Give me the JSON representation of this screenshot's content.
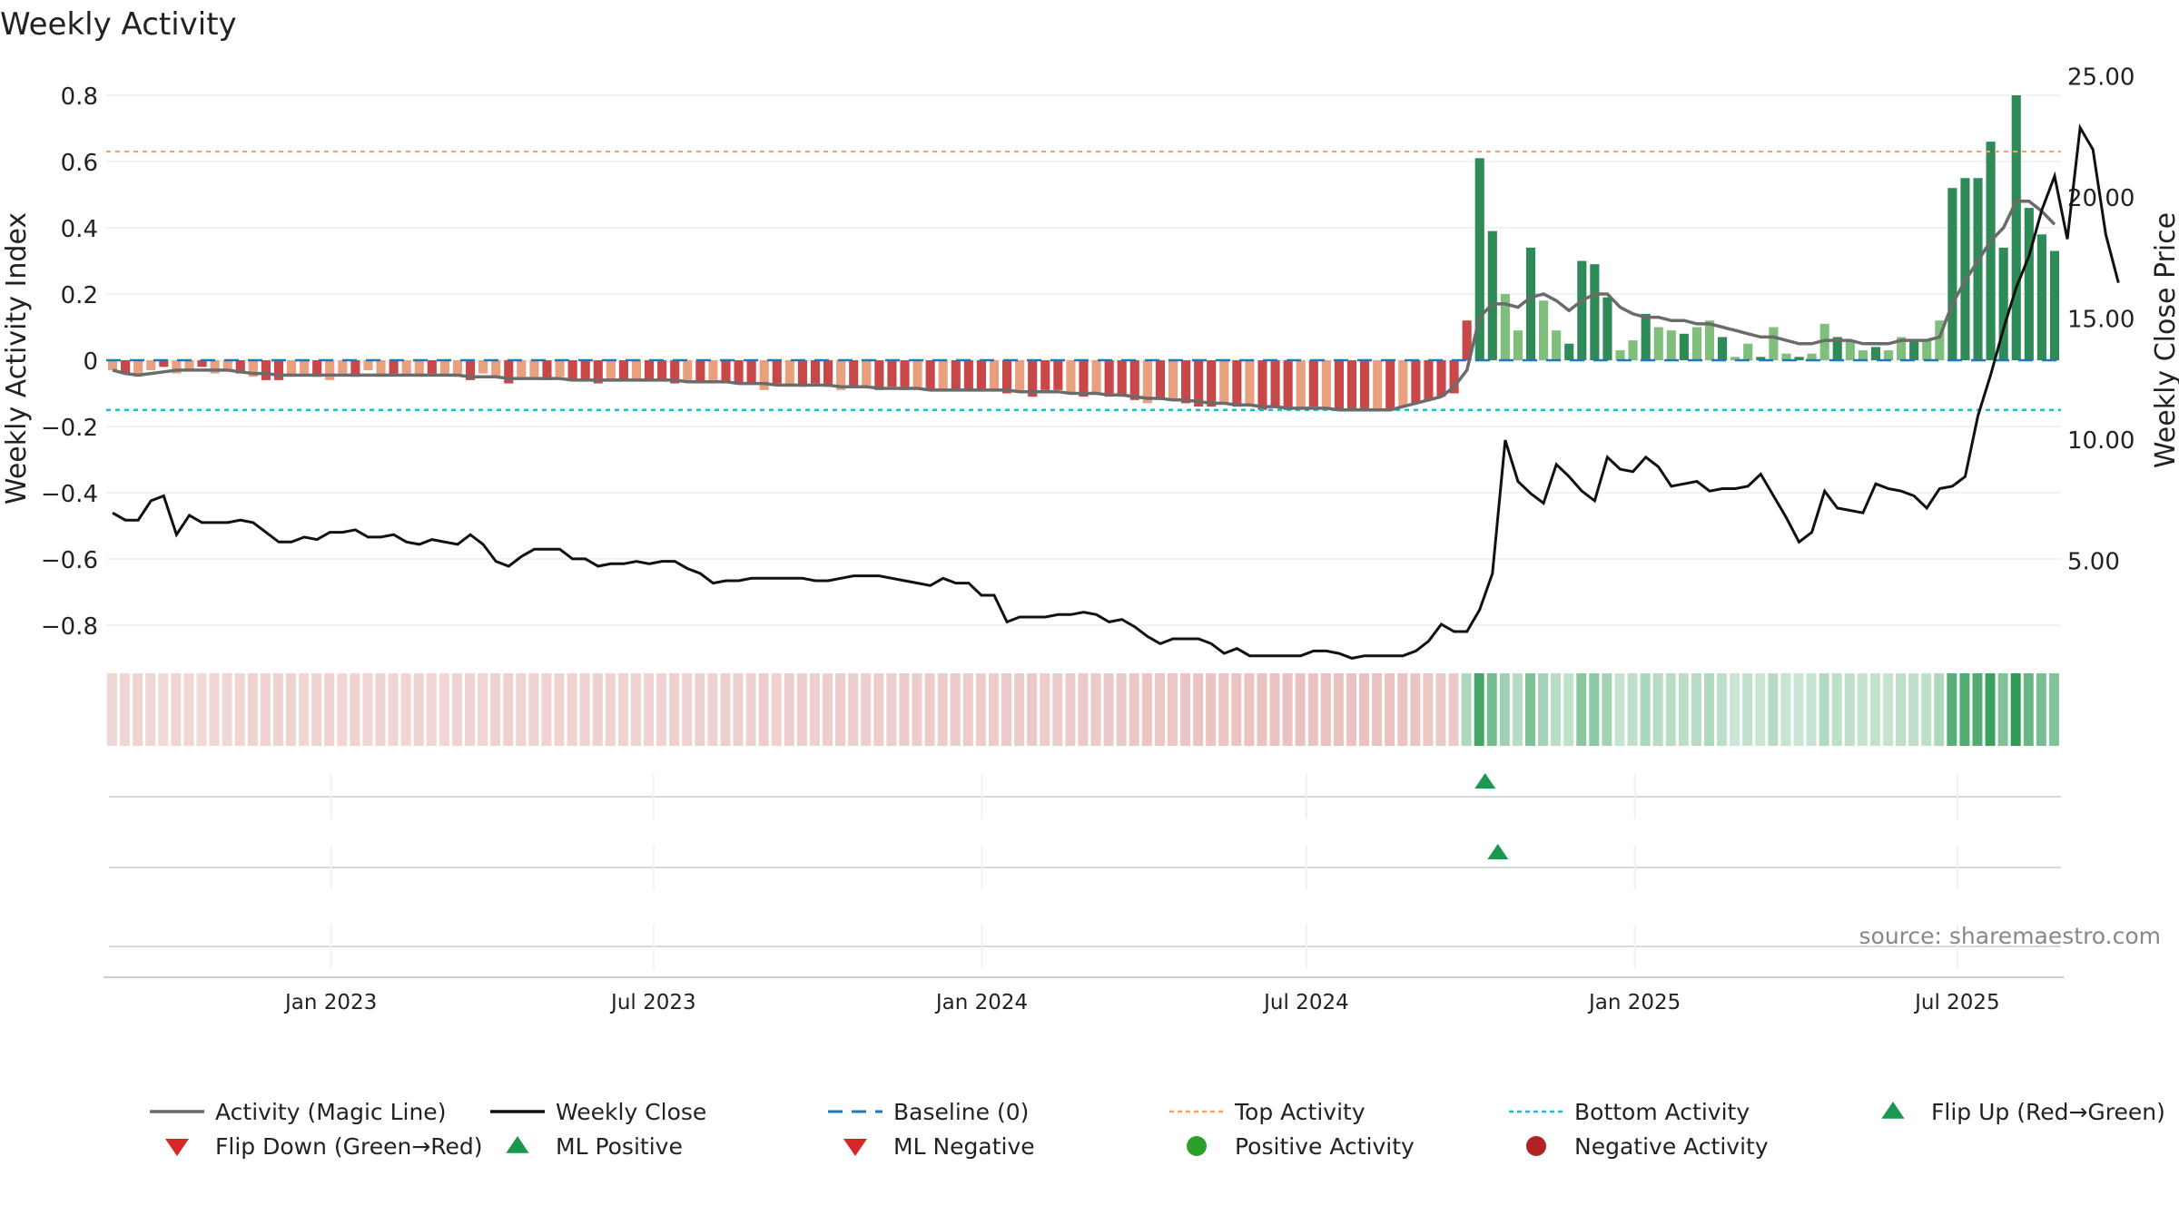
{
  "chart_data": {
    "type": "bar",
    "title": "Weekly Activity",
    "ylabel": "Weekly Activity Index",
    "y2label": "Weekly Close Price",
    "ylim": [
      -0.86,
      0.83
    ],
    "y2lim": [
      2.2,
      25.6
    ],
    "yticks": [
      "0.8",
      "0.6",
      "0.4",
      "0.2",
      "0",
      "−0.2",
      "−0.4",
      "−0.6",
      "−0.8"
    ],
    "y2ticks": [
      "25.00",
      "20.00",
      "15.00",
      "10.00",
      "5.00"
    ],
    "xticks": [
      "Jan 2023",
      "Jul 2023",
      "Jan 2024",
      "Jul 2024",
      "Jan 2025",
      "Jul 2025"
    ],
    "top_activity": 0.63,
    "bottom_activity": -0.15,
    "baseline": 0,
    "grid": true,
    "legend_position": "bottom",
    "source": "source: sharemaestro.com",
    "colors": {
      "neg_dark": "#c8484a",
      "neg_light": "#e8a07e",
      "pos_dark": "#2e8b57",
      "pos_light": "#7fbf7b",
      "magic": "#6b6b6b",
      "close": "#111111",
      "baseline": "#1f77b4",
      "top": "#f4a261",
      "bottom": "#17becf",
      "flip_up": "#1a9850",
      "flip_down": "#d62728",
      "pos_dot": "#2ca02c",
      "neg_dot": "#b22222"
    },
    "series": [
      {
        "name": "Activity",
        "values": [
          -0.03,
          -0.04,
          -0.05,
          -0.03,
          -0.02,
          -0.04,
          -0.03,
          -0.02,
          -0.04,
          -0.03,
          -0.04,
          -0.05,
          -0.06,
          -0.06,
          -0.05,
          -0.04,
          -0.05,
          -0.06,
          -0.04,
          -0.05,
          -0.03,
          -0.05,
          -0.04,
          -0.04,
          -0.05,
          -0.04,
          -0.04,
          -0.05,
          -0.06,
          -0.04,
          -0.05,
          -0.07,
          -0.05,
          -0.05,
          -0.06,
          -0.05,
          -0.06,
          -0.06,
          -0.07,
          -0.06,
          -0.06,
          -0.06,
          -0.06,
          -0.06,
          -0.07,
          -0.06,
          -0.07,
          -0.06,
          -0.07,
          -0.07,
          -0.07,
          -0.09,
          -0.07,
          -0.08,
          -0.08,
          -0.07,
          -0.08,
          -0.09,
          -0.08,
          -0.08,
          -0.09,
          -0.08,
          -0.09,
          -0.09,
          -0.09,
          -0.09,
          -0.09,
          -0.09,
          -0.09,
          -0.09,
          -0.1,
          -0.09,
          -0.11,
          -0.09,
          -0.09,
          -0.1,
          -0.11,
          -0.1,
          -0.11,
          -0.11,
          -0.12,
          -0.13,
          -0.12,
          -0.12,
          -0.13,
          -0.14,
          -0.14,
          -0.13,
          -0.14,
          -0.14,
          -0.15,
          -0.14,
          -0.15,
          -0.15,
          -0.14,
          -0.15,
          -0.15,
          -0.15,
          -0.15,
          -0.15,
          -0.15,
          -0.14,
          -0.13,
          -0.12,
          -0.11,
          -0.1,
          0.12,
          0.61,
          0.39,
          0.2,
          0.09,
          0.34,
          0.18,
          0.09,
          0.05,
          0.3,
          0.29,
          0.19,
          0.03,
          0.06,
          0.14,
          0.1,
          0.09,
          0.08,
          0.1,
          0.12,
          0.07,
          0.01,
          0.05,
          0.01,
          0.1,
          0.02,
          0.01,
          0.02,
          0.11,
          0.07,
          0.06,
          0.03,
          0.04,
          0.03,
          0.07,
          0.06,
          0.06,
          0.12,
          0.52,
          0.55,
          0.55,
          0.66,
          0.34,
          0.8,
          0.46,
          0.38,
          0.33
        ]
      },
      {
        "name": "Activity (Magic Line)",
        "values": [
          -0.03,
          -0.04,
          -0.045,
          -0.04,
          -0.035,
          -0.03,
          -0.03,
          -0.03,
          -0.03,
          -0.03,
          -0.035,
          -0.04,
          -0.04,
          -0.045,
          -0.045,
          -0.045,
          -0.045,
          -0.045,
          -0.045,
          -0.045,
          -0.045,
          -0.045,
          -0.045,
          -0.045,
          -0.045,
          -0.045,
          -0.045,
          -0.045,
          -0.05,
          -0.05,
          -0.05,
          -0.055,
          -0.055,
          -0.055,
          -0.055,
          -0.055,
          -0.06,
          -0.06,
          -0.06,
          -0.06,
          -0.06,
          -0.06,
          -0.06,
          -0.06,
          -0.06,
          -0.065,
          -0.065,
          -0.065,
          -0.065,
          -0.07,
          -0.07,
          -0.07,
          -0.075,
          -0.075,
          -0.075,
          -0.075,
          -0.075,
          -0.08,
          -0.08,
          -0.08,
          -0.085,
          -0.085,
          -0.085,
          -0.085,
          -0.09,
          -0.09,
          -0.09,
          -0.09,
          -0.09,
          -0.09,
          -0.09,
          -0.095,
          -0.095,
          -0.095,
          -0.095,
          -0.1,
          -0.1,
          -0.1,
          -0.105,
          -0.105,
          -0.11,
          -0.115,
          -0.115,
          -0.12,
          -0.12,
          -0.125,
          -0.13,
          -0.13,
          -0.135,
          -0.135,
          -0.14,
          -0.14,
          -0.145,
          -0.145,
          -0.145,
          -0.145,
          -0.15,
          -0.15,
          -0.15,
          -0.15,
          -0.15,
          -0.14,
          -0.13,
          -0.12,
          -0.11,
          -0.08,
          -0.03,
          0.13,
          0.17,
          0.17,
          0.16,
          0.19,
          0.2,
          0.18,
          0.15,
          0.18,
          0.2,
          0.2,
          0.16,
          0.14,
          0.13,
          0.13,
          0.12,
          0.12,
          0.11,
          0.11,
          0.1,
          0.09,
          0.08,
          0.07,
          0.07,
          0.06,
          0.05,
          0.05,
          0.06,
          0.06,
          0.06,
          0.05,
          0.05,
          0.05,
          0.06,
          0.06,
          0.06,
          0.07,
          0.17,
          0.24,
          0.3,
          0.36,
          0.4,
          0.48,
          0.48,
          0.45,
          0.41
        ]
      },
      {
        "name": "Weekly Close",
        "values": [
          7.0,
          6.7,
          6.7,
          7.5,
          7.7,
          6.1,
          6.9,
          6.6,
          6.6,
          6.6,
          6.7,
          6.6,
          6.2,
          5.8,
          5.8,
          6.0,
          5.9,
          6.2,
          6.2,
          6.3,
          6.0,
          6.0,
          6.1,
          5.8,
          5.7,
          5.9,
          5.8,
          5.7,
          6.1,
          5.7,
          5.0,
          4.8,
          5.2,
          5.5,
          5.5,
          5.5,
          5.1,
          5.1,
          4.8,
          4.9,
          4.9,
          5.0,
          4.9,
          5.0,
          5.0,
          4.7,
          4.5,
          4.1,
          4.2,
          4.2,
          4.3,
          4.3,
          4.3,
          4.3,
          4.3,
          4.2,
          4.2,
          4.3,
          4.4,
          4.4,
          4.4,
          4.3,
          4.2,
          4.1,
          4.0,
          4.3,
          4.1,
          4.1,
          3.6,
          3.6,
          2.5,
          2.7,
          2.7,
          2.7,
          2.8,
          2.8,
          2.9,
          2.8,
          2.5,
          2.6,
          2.3,
          1.9,
          1.6,
          1.8,
          1.8,
          1.8,
          1.6,
          1.2,
          1.4,
          1.1,
          1.1,
          1.1,
          1.1,
          1.1,
          1.3,
          1.3,
          1.2,
          1.0,
          1.1,
          1.1,
          1.1,
          1.1,
          1.3,
          1.7,
          2.4,
          2.1,
          2.1,
          3.0,
          4.5,
          10.0,
          8.3,
          7.8,
          7.4,
          9.0,
          8.5,
          7.9,
          7.5,
          9.3,
          8.8,
          8.7,
          9.3,
          8.9,
          8.1,
          8.2,
          8.3,
          7.9,
          8.0,
          8.0,
          8.1,
          8.6,
          7.7,
          6.8,
          5.8,
          6.2,
          7.9,
          7.2,
          7.1,
          7.0,
          8.2,
          8.0,
          7.9,
          7.7,
          7.2,
          8.0,
          8.1,
          8.5,
          11.0,
          12.7,
          14.6,
          16.3,
          17.6,
          19.5,
          20.9,
          18.3,
          22.9,
          22.0,
          18.5,
          16.5
        ]
      }
    ],
    "flip_up_index": 107,
    "ml_positive_index": 108,
    "activity_strip_label": "",
    "legend": [
      {
        "label": "Activity (Magic Line)",
        "symbol": "line",
        "color": "#6b6b6b"
      },
      {
        "label": "Weekly Close",
        "symbol": "line",
        "color": "#111111"
      },
      {
        "label": "Baseline (0)",
        "symbol": "dash",
        "color": "#1f77b4"
      },
      {
        "label": "Top Activity",
        "symbol": "dot-line",
        "color": "#f4a261"
      },
      {
        "label": "Bottom Activity",
        "symbol": "dot-line",
        "color": "#17becf"
      },
      {
        "label": "Flip Up (Red→Green)",
        "symbol": "tri-up",
        "color": "#1a9850"
      },
      {
        "label": "Flip Down (Green→Red)",
        "symbol": "tri-down",
        "color": "#d62728"
      },
      {
        "label": "ML Positive",
        "symbol": "tri-up",
        "color": "#1a9850"
      },
      {
        "label": "ML Negative",
        "symbol": "tri-down",
        "color": "#d62728"
      },
      {
        "label": "Positive Activity",
        "symbol": "circle",
        "color": "#2ca02c"
      },
      {
        "label": "Negative Activity",
        "symbol": "circle",
        "color": "#b22222"
      }
    ]
  }
}
